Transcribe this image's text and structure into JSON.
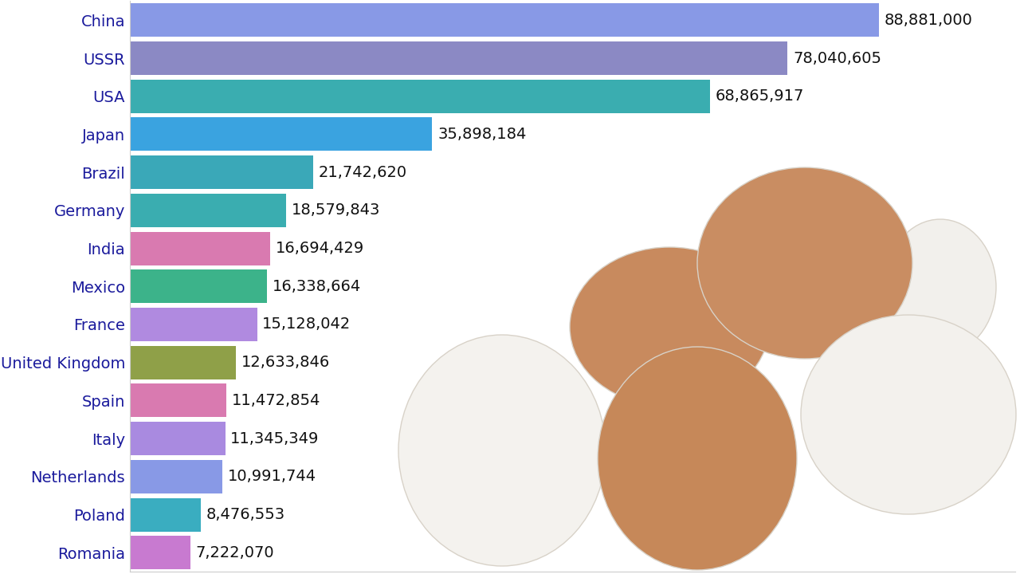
{
  "chart_data": {
    "type": "bar",
    "orientation": "horizontal",
    "categories": [
      "China",
      "USSR",
      "USA",
      "Japan",
      "Brazil",
      "Germany",
      "India",
      "Mexico",
      "France",
      "United Kingdom",
      "Spain",
      "Italy",
      "Netherlands",
      "Poland",
      "Romania"
    ],
    "values": [
      88881000,
      78040605,
      68865917,
      35898184,
      21742620,
      18579843,
      16694429,
      16338664,
      15128042,
      12633846,
      11472854,
      11345349,
      10991744,
      8476553,
      7222070
    ],
    "value_labels": [
      "88,881,000",
      "78,040,605",
      "68,865,917",
      "35,898,184",
      "21,742,620",
      "18,579,843",
      "16,694,429",
      "16,338,664",
      "15,128,042",
      "12,633,846",
      "11,472,854",
      "11,345,349",
      "10,991,744",
      "8,476,553",
      "7,222,070"
    ],
    "colors": [
      "#8899e6",
      "#8b89c4",
      "#3aadb0",
      "#3aa3e0",
      "#3aa8b8",
      "#3aadb0",
      "#d97ab0",
      "#3cb38a",
      "#b08ae0",
      "#8fa048",
      "#d97ab0",
      "#a98ae0",
      "#8899e6",
      "#3aadc0",
      "#c87ad0"
    ],
    "xlim": [
      0,
      105000000
    ],
    "xticks": [],
    "data_labels": true,
    "tick_labels": "y",
    "grid": false
  }
}
